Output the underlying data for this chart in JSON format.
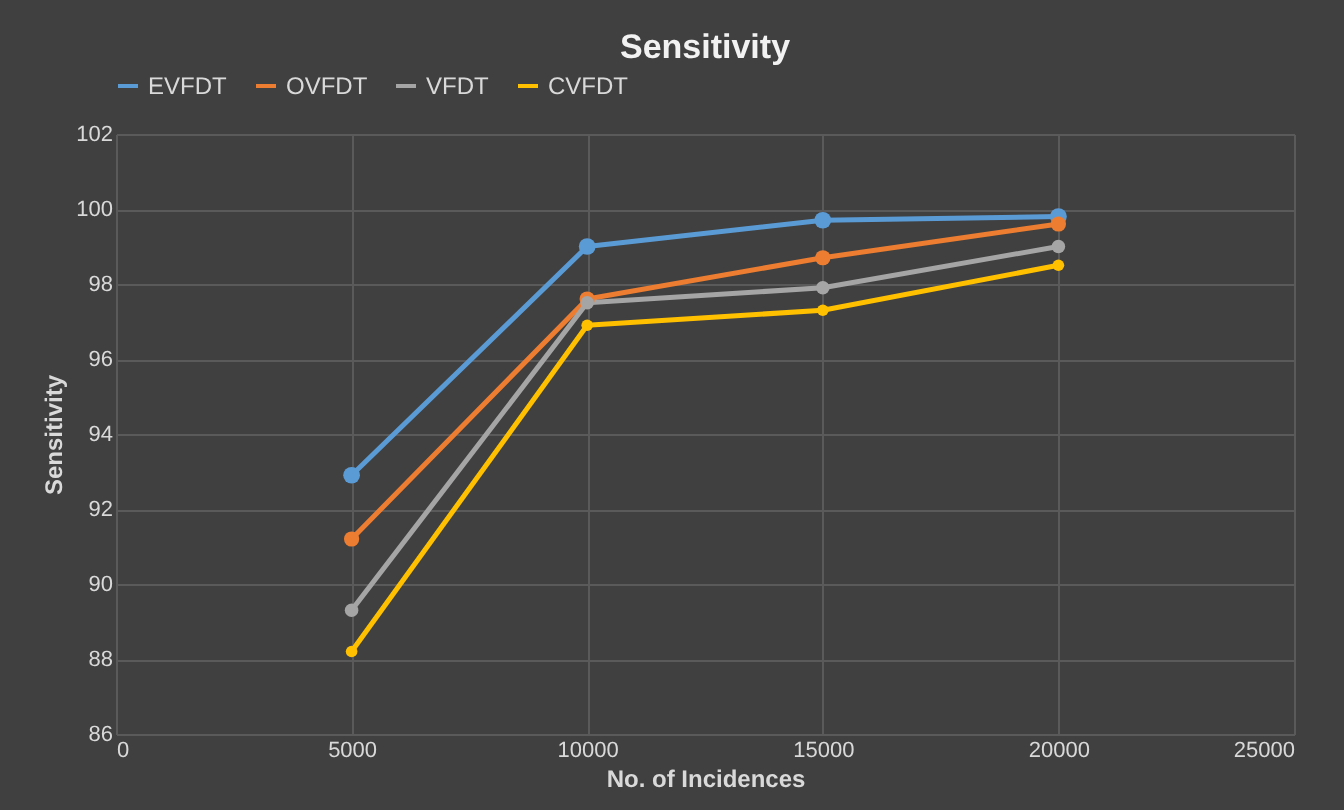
{
  "chart_data": {
    "type": "line",
    "title": "Sensitivity",
    "xlabel": "No. of Incidences",
    "ylabel": "Sensitivity",
    "x": [
      5000,
      10000,
      15000,
      20000
    ],
    "series": [
      {
        "name": "EVFDT",
        "color": "#5b9bd5",
        "values": [
          92.9,
          99.0,
          99.7,
          99.8
        ]
      },
      {
        "name": "OVFDT",
        "color": "#ed7d31",
        "values": [
          91.2,
          97.6,
          98.7,
          99.6
        ]
      },
      {
        "name": "VFDT",
        "color": "#a5a5a5",
        "values": [
          89.3,
          97.5,
          97.9,
          99.0
        ]
      },
      {
        "name": "CVFDT",
        "color": "#ffc000",
        "values": [
          88.2,
          96.9,
          97.3,
          98.5
        ]
      }
    ],
    "xlim": [
      0,
      25000
    ],
    "xticks": [
      0,
      5000,
      10000,
      15000,
      20000,
      25000
    ],
    "ylim": [
      86,
      102
    ],
    "yticks": [
      86,
      88,
      90,
      92,
      94,
      96,
      98,
      100,
      102
    ],
    "grid": true,
    "legend": "top",
    "marker": "circle",
    "line_style": "solid"
  }
}
